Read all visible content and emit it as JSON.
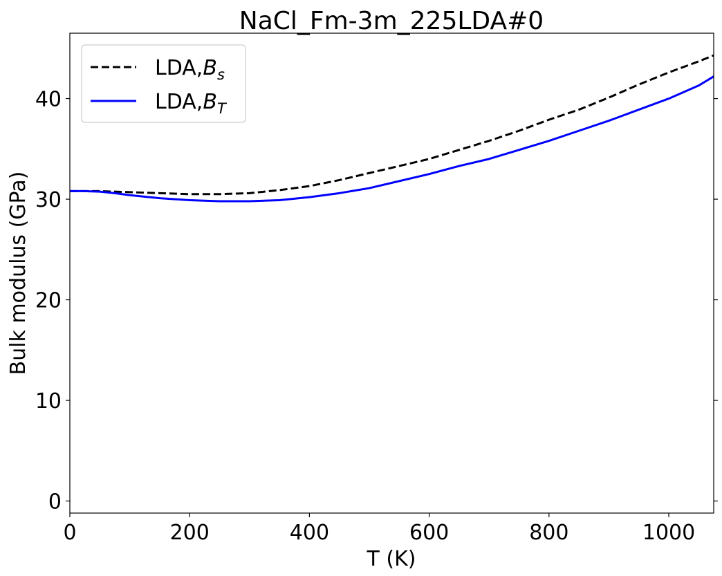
{
  "chart_data": {
    "type": "line",
    "title": "NaCl_Fm-3m_225LDA#0",
    "xlabel": "T (K)",
    "ylabel": "Bulk modulus (GPa)",
    "xlim": [
      0,
      1075
    ],
    "ylim": [
      -1.2,
      46.5
    ],
    "xticks": [
      0,
      200,
      400,
      600,
      800,
      1000
    ],
    "yticks": [
      0,
      10,
      20,
      30,
      40
    ],
    "grid": false,
    "legend_position": "top-left",
    "series": [
      {
        "name": "LDA,B_s",
        "label_main": "LDA,",
        "label_sym": "B",
        "label_sub": "s",
        "style": "dashed",
        "color": "#000000",
        "x": [
          0,
          25,
          50,
          75,
          100,
          150,
          200,
          250,
          300,
          350,
          400,
          450,
          500,
          550,
          600,
          650,
          700,
          750,
          800,
          850,
          900,
          950,
          1000,
          1050,
          1075
        ],
        "y": [
          30.8,
          30.8,
          30.8,
          30.75,
          30.7,
          30.6,
          30.5,
          30.5,
          30.6,
          30.9,
          31.3,
          31.9,
          32.6,
          33.3,
          34.0,
          34.9,
          35.8,
          36.8,
          37.9,
          38.9,
          40.1,
          41.4,
          42.6,
          43.7,
          44.3
        ]
      },
      {
        "name": "LDA,B_T",
        "label_main": "LDA,",
        "label_sym": "B",
        "label_sub": "T",
        "style": "solid",
        "color": "#0000ff",
        "x": [
          0,
          25,
          50,
          75,
          100,
          150,
          200,
          250,
          300,
          350,
          400,
          450,
          500,
          550,
          600,
          650,
          700,
          750,
          800,
          850,
          900,
          950,
          1000,
          1050,
          1075
        ],
        "y": [
          30.8,
          30.8,
          30.75,
          30.6,
          30.4,
          30.1,
          29.9,
          29.8,
          29.8,
          29.9,
          30.2,
          30.6,
          31.1,
          31.8,
          32.5,
          33.3,
          34.0,
          34.9,
          35.8,
          36.8,
          37.8,
          38.9,
          40.0,
          41.3,
          42.2
        ]
      }
    ]
  }
}
